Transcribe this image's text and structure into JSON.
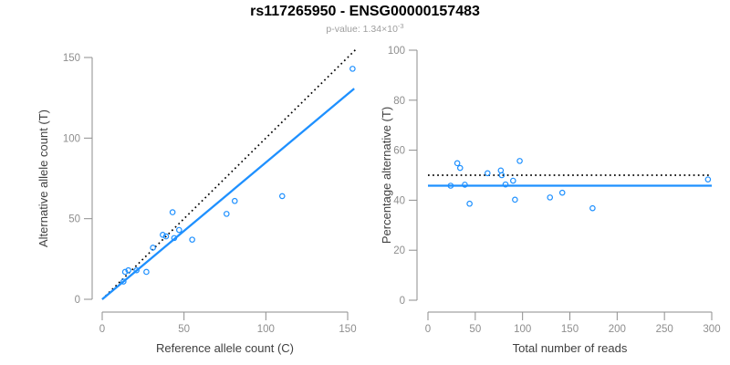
{
  "header": {
    "title": "rs117265950 - ENSG00000157483",
    "subtitle_prefix": "p-value: 1.34×10",
    "subtitle_exponent": "-3"
  },
  "colors": {
    "point_blue": "#1E90FF",
    "fit_line_blue": "#1E90FF",
    "reference_line_black": "#000000",
    "axis_gray": "#8e8e8e",
    "tick_label_gray": "#8e8e8e",
    "axis_title_gray": "#404040",
    "subtitle_gray": "#9e9e9e",
    "title_black": "#000000",
    "background": "#ffffff"
  },
  "chart_data": [
    {
      "id": "allele-count-scatter",
      "type": "scatter",
      "title": "",
      "xlabel": "Reference allele count (C)",
      "ylabel": "Alternative allele count (T)",
      "xticks": [
        0,
        50,
        100,
        150
      ],
      "yticks": [
        0,
        50,
        100,
        150
      ],
      "xlim": [
        0,
        155
      ],
      "ylim": [
        0,
        155
      ],
      "grid": false,
      "legend": null,
      "marker": "open-circle",
      "points": [
        [
          13,
          11
        ],
        [
          14,
          17
        ],
        [
          16,
          18
        ],
        [
          21,
          18
        ],
        [
          27,
          17
        ],
        [
          31,
          32
        ],
        [
          37,
          40
        ],
        [
          39,
          39
        ],
        [
          43,
          54
        ],
        [
          44,
          38
        ],
        [
          47,
          43
        ],
        [
          55,
          37
        ],
        [
          76,
          53
        ],
        [
          81,
          61
        ],
        [
          110,
          64
        ],
        [
          153,
          143
        ]
      ],
      "lines": [
        {
          "name": "identity-reference-line",
          "style": "dotted",
          "color": "#000000",
          "x1": 0,
          "y1": 0,
          "x2": 155,
          "y2": 155
        },
        {
          "name": "allelic-ratio-fit-line",
          "style": "solid",
          "color": "#1E90FF",
          "x1": 0,
          "y1": 0,
          "x2": 154,
          "y2": 130.7
        }
      ]
    },
    {
      "id": "percentage-vs-coverage-scatter",
      "type": "scatter",
      "title": "",
      "xlabel": "Total number of reads",
      "ylabel": "Percentage alternative (T)",
      "xticks": [
        0,
        50,
        100,
        150,
        200,
        250,
        300
      ],
      "yticks": [
        0,
        20,
        40,
        60,
        80,
        100
      ],
      "xlim": [
        0,
        300
      ],
      "ylim": [
        0,
        100
      ],
      "grid": false,
      "legend": null,
      "marker": "open-circle",
      "points": [
        [
          24,
          45.8
        ],
        [
          31,
          54.8
        ],
        [
          34,
          52.9
        ],
        [
          39,
          46.2
        ],
        [
          44,
          38.6
        ],
        [
          63,
          50.8
        ],
        [
          77,
          51.9
        ],
        [
          78,
          50.0
        ],
        [
          82,
          46.3
        ],
        [
          90,
          47.8
        ],
        [
          92,
          40.2
        ],
        [
          97,
          55.7
        ],
        [
          129,
          41.1
        ],
        [
          142,
          43.0
        ],
        [
          174,
          36.8
        ],
        [
          296,
          48.3
        ]
      ],
      "lines": [
        {
          "name": "expected-50-percent-line",
          "style": "dotted",
          "color": "#000000",
          "x1": 0,
          "y1": 50,
          "x2": 300,
          "y2": 50
        },
        {
          "name": "observed-mean-percent-line",
          "style": "solid",
          "color": "#1E90FF",
          "x1": 0,
          "y1": 45.8,
          "x2": 300,
          "y2": 45.8
        }
      ]
    }
  ]
}
